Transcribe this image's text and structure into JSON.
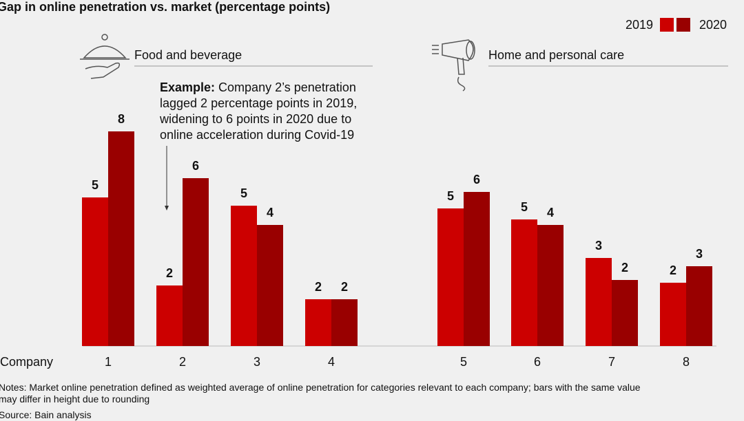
{
  "chart_data": {
    "type": "bar",
    "title": "Gap in online penetration vs. market (percentage points)",
    "x_label": "Company",
    "categories": [
      "1",
      "2",
      "3",
      "4",
      "5",
      "6",
      "7",
      "8"
    ],
    "groups": [
      {
        "label": "Food and beverage",
        "size": 4
      },
      {
        "label": "Home and personal care",
        "size": 4
      }
    ],
    "series": [
      {
        "name": "2019",
        "color": "#cc0000",
        "values": [
          5.4,
          2.2,
          5.1,
          1.7,
          5.0,
          4.6,
          3.2,
          2.3
        ],
        "value_labels": [
          "5",
          "2",
          "5",
          "2",
          "5",
          "5",
          "3",
          "2"
        ]
      },
      {
        "name": "2020",
        "color": "#990000",
        "values": [
          7.8,
          6.1,
          4.4,
          1.7,
          5.6,
          4.4,
          2.4,
          2.9
        ],
        "value_labels": [
          "8",
          "6",
          "4",
          "2",
          "6",
          "4",
          "2",
          "3"
        ]
      }
    ],
    "annotation": {
      "lead": "Example:",
      "lines": [
        "Company 2’s penetration",
        "lagged 2 percentage points in 2019,",
        "widening to 6 points in 2020 due to",
        "online acceleration during Covid-19"
      ]
    },
    "notes": [
      "Notes: Market online penetration defined as weighted average of online penetration for categories relevant to each company; bars with the same value",
      "may differ in height due to rounding"
    ],
    "source": "Source: Bain analysis"
  }
}
